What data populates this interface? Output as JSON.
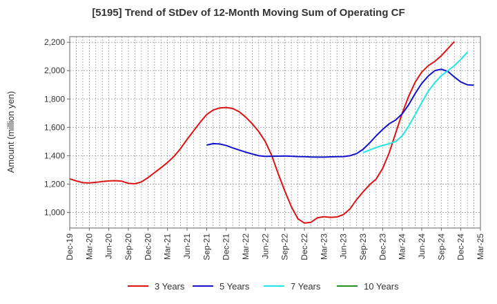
{
  "chart_data": {
    "type": "line",
    "title": "[5195]  Trend of StDev of 12-Month Moving Sum of Operating CF",
    "xlabel": "",
    "ylabel": "Amount (million yen)",
    "ylim": [
      890,
      2240
    ],
    "yticks": [
      1000,
      1200,
      1400,
      1600,
      1800,
      2000,
      2200
    ],
    "ytick_labels": [
      "1,000",
      "1,200",
      "1,400",
      "1,600",
      "1,800",
      "2,000",
      "2,200"
    ],
    "x_start": "Dec-19",
    "x_end": "Mar-25",
    "xtick_labels": [
      "Dec-19",
      "Mar-20",
      "Jun-20",
      "Sep-20",
      "Dec-20",
      "Mar-21",
      "Jun-21",
      "Sep-21",
      "Dec-21",
      "Mar-22",
      "Jun-22",
      "Sep-22",
      "Dec-22",
      "Mar-23",
      "Jun-23",
      "Sep-23",
      "Dec-23",
      "Mar-24",
      "Jun-24",
      "Sep-24",
      "Dec-24",
      "Mar-25"
    ],
    "grid": true,
    "legend_position": "bottom",
    "series": [
      {
        "name": "3 Years",
        "color": "#dd1111",
        "start": "Dec-19",
        "values": [
          1237,
          1222,
          1210,
          1208,
          1212,
          1218,
          1222,
          1224,
          1220,
          1205,
          1202,
          1215,
          1245,
          1280,
          1315,
          1352,
          1395,
          1450,
          1515,
          1575,
          1635,
          1690,
          1722,
          1737,
          1740,
          1733,
          1710,
          1672,
          1625,
          1570,
          1500,
          1400,
          1270,
          1150,
          1040,
          955,
          925,
          930,
          962,
          970,
          965,
          968,
          985,
          1025,
          1090,
          1145,
          1195,
          1235,
          1310,
          1420,
          1560,
          1700,
          1820,
          1920,
          1990,
          2035,
          2065,
          2105,
          2155,
          2205
        ]
      },
      {
        "name": "5 Years",
        "color": "#1111cc",
        "start": "Sep-21",
        "values": [
          1475,
          1485,
          1483,
          1472,
          1455,
          1440,
          1425,
          1412,
          1400,
          1395,
          1396,
          1397,
          1398,
          1396,
          1394,
          1393,
          1391,
          1390,
          1390,
          1392,
          1393,
          1394,
          1400,
          1415,
          1445,
          1490,
          1540,
          1585,
          1625,
          1652,
          1695,
          1760,
          1840,
          1910,
          1962,
          2000,
          2010,
          1995,
          1955,
          1920,
          1900,
          1897
        ]
      },
      {
        "name": "7 Years",
        "color": "#22e5e5",
        "start": "Sep-23",
        "values": [
          1422,
          1440,
          1458,
          1472,
          1485,
          1500,
          1540,
          1610,
          1690,
          1775,
          1855,
          1915,
          1965,
          2000,
          2035,
          2080,
          2130
        ]
      },
      {
        "name": "10 Years",
        "color": "#228b22",
        "start": "Dec-24",
        "values": []
      }
    ]
  }
}
